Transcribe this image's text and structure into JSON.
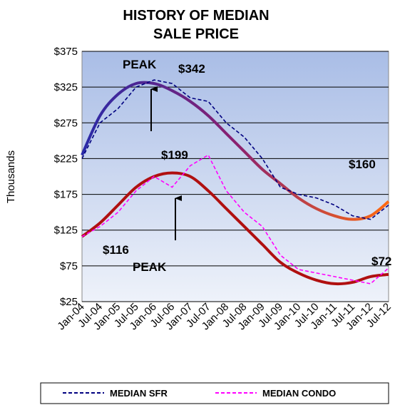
{
  "chart_data": {
    "type": "line",
    "title": [
      "HISTORY OF MEDIAN",
      "SALE PRICE"
    ],
    "y_label": "Thousands",
    "categories": [
      "Jan-04",
      "Jul-04",
      "Jan-05",
      "Jul-05",
      "Jan-06",
      "Jul-06",
      "Jan-07",
      "Jul-07",
      "Jan-08",
      "Jul-08",
      "Jan-09",
      "Jul-09",
      "Jan-10",
      "Jul-10",
      "Jan-11",
      "Jul-11",
      "Jan-12",
      "Jul-12"
    ],
    "ylim": [
      25,
      375
    ],
    "yticks": [
      {
        "value": 25,
        "label": "$25"
      },
      {
        "value": 75,
        "label": "$75"
      },
      {
        "value": 125,
        "label": "$125"
      },
      {
        "value": 175,
        "label": "$175"
      },
      {
        "value": 225,
        "label": "$225"
      },
      {
        "value": 275,
        "label": "$275"
      },
      {
        "value": 325,
        "label": "$325"
      },
      {
        "value": 375,
        "label": "$375"
      }
    ],
    "grid": true,
    "series": [
      {
        "name": "MEDIAN SFR",
        "color": "#000080",
        "values": [
          225,
          275,
          295,
          325,
          335,
          330,
          310,
          305,
          275,
          255,
          225,
          185,
          175,
          170,
          160,
          145,
          140,
          160
        ]
      },
      {
        "name": "MEDIAN CONDO",
        "color": "#ff00ff",
        "values": [
          116,
          130,
          150,
          180,
          200,
          185,
          215,
          230,
          180,
          150,
          130,
          90,
          70,
          65,
          60,
          55,
          50,
          72
        ]
      }
    ],
    "trendlines": [
      {
        "colors": [
          "#2a2aa8",
          "#8a2070",
          "#ff6a10"
        ],
        "values": [
          230,
          285,
          315,
          330,
          330,
          320,
          305,
          285,
          260,
          235,
          210,
          190,
          170,
          155,
          145,
          140,
          145,
          165
        ]
      },
      {
        "colors": [
          "#b01010",
          "#b01010"
        ],
        "values": [
          116,
          135,
          160,
          185,
          200,
          205,
          200,
          180,
          155,
          130,
          105,
          80,
          65,
          55,
          50,
          52,
          60,
          63
        ]
      }
    ],
    "annotations": [
      "PEAK",
      "$342",
      "$199",
      "$160",
      "$116",
      "PEAK",
      "$72"
    ]
  }
}
